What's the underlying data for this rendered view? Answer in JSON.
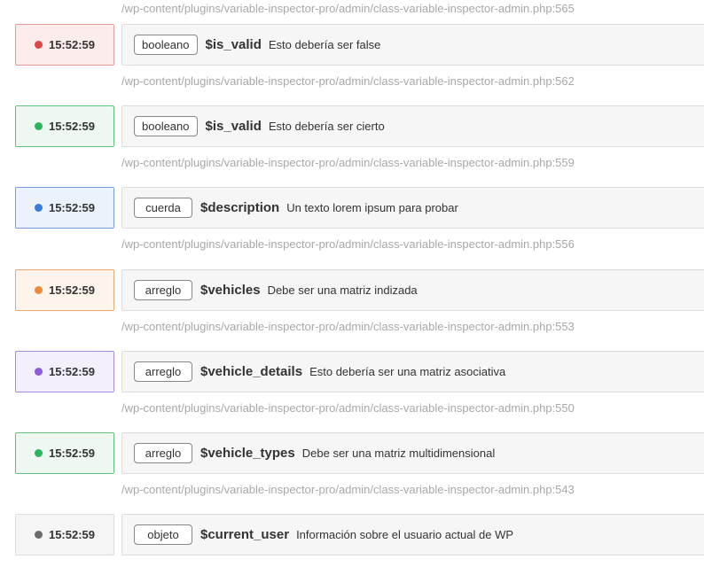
{
  "top_path": "/wp-content/plugins/variable-inspector-pro/admin/class-variable-inspector-admin.php:565",
  "entries": [
    {
      "time": "15:52:59",
      "type": "booleano",
      "var": "$is_valid",
      "desc": "Esto debería ser false",
      "path": "/wp-content/plugins/variable-inspector-pro/admin/class-variable-inspector-admin.php:562",
      "color": "red",
      "bg": "#fdecec",
      "border": "#e39a9a",
      "dot": "#e04848"
    },
    {
      "time": "15:52:59",
      "type": "booleano",
      "var": "$is_valid",
      "desc": "Esto debería ser cierto",
      "path": "/wp-content/plugins/variable-inspector-pro/admin/class-variable-inspector-admin.php:559",
      "color": "green",
      "bg": "#eef8f1",
      "border": "#62c07e",
      "dot": "#2db55d"
    },
    {
      "time": "15:52:59",
      "type": "cuerda",
      "var": "$description",
      "desc": "Un texto lorem ipsum para probar",
      "path": "/wp-content/plugins/variable-inspector-pro/admin/class-variable-inspector-admin.php:556",
      "color": "blue",
      "bg": "#ebf2fc",
      "border": "#749de0",
      "dot": "#3b7ddd"
    },
    {
      "time": "15:52:59",
      "type": "arreglo",
      "var": "$vehicles",
      "desc": "Debe ser una matriz indizada",
      "path": "/wp-content/plugins/variable-inspector-pro/admin/class-variable-inspector-admin.php:553",
      "color": "orange",
      "bg": "#fdf4eb",
      "border": "#e9a871",
      "dot": "#ef8a3a"
    },
    {
      "time": "15:52:59",
      "type": "arreglo",
      "var": "$vehicle_details",
      "desc": "Esto debería ser una matriz asociativa",
      "path": "/wp-content/plugins/variable-inspector-pro/admin/class-variable-inspector-admin.php:550",
      "color": "purple",
      "bg": "#f3effd",
      "border": "#a68de0",
      "dot": "#8a5cdd"
    },
    {
      "time": "15:52:59",
      "type": "arreglo",
      "var": "$vehicle_types",
      "desc": "Debe ser una matriz multidimensional",
      "path": "/wp-content/plugins/variable-inspector-pro/admin/class-variable-inspector-admin.php:543",
      "color": "green",
      "bg": "#eef8f1",
      "border": "#62c07e",
      "dot": "#2db55d"
    },
    {
      "time": "15:52:59",
      "type": "objeto",
      "var": "$current_user",
      "desc": "Información sobre el usuario actual de WP",
      "color": "gray",
      "bg": "#f5f5f5",
      "border": "#dedede",
      "dot": "#6b6b6b"
    }
  ]
}
